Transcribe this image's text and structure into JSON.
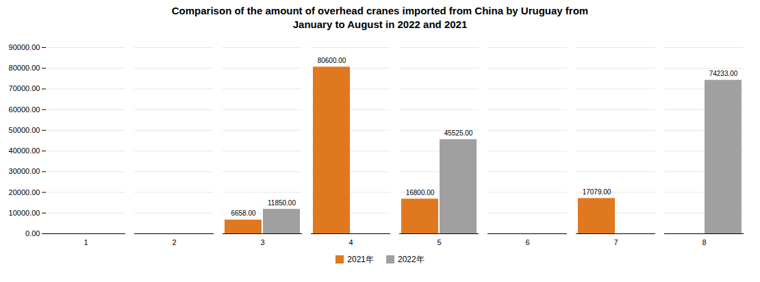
{
  "chart_data": {
    "type": "bar",
    "title": "Comparison of the amount of overhead cranes imported from China by Uruguay from\nJanuary to August in 2022 and 2021",
    "categories": [
      "1",
      "2",
      "3",
      "4",
      "5",
      "6",
      "7",
      "8"
    ],
    "series": [
      {
        "name": "2021年",
        "color": "#E07820",
        "values": [
          0,
          0,
          6658,
          80600,
          16800,
          0,
          17079,
          0
        ],
        "value_labels": [
          null,
          null,
          "6658.00",
          "80600.00",
          "16800.00",
          null,
          "17079.00",
          null
        ]
      },
      {
        "name": "2022年",
        "color": "#A0A0A0",
        "values": [
          0,
          0,
          11850,
          0,
          45525,
          0,
          0,
          74233
        ],
        "value_labels": [
          null,
          null,
          "11850.00",
          null,
          "45525.00",
          null,
          null,
          "74233.00"
        ]
      }
    ],
    "ylim": [
      0,
      90000
    ],
    "yticks": [
      {
        "value": 0,
        "label": "0.00"
      },
      {
        "value": 10000,
        "label": "10000.00"
      },
      {
        "value": 20000,
        "label": "20000.00"
      },
      {
        "value": 30000,
        "label": "30000.00"
      },
      {
        "value": 40000,
        "label": "40000.00"
      },
      {
        "value": 50000,
        "label": "50000.00"
      },
      {
        "value": 60000,
        "label": "60000.00"
      },
      {
        "value": 70000,
        "label": "70000.00"
      },
      {
        "value": 80000,
        "label": "80000.00"
      },
      {
        "value": 90000,
        "label": "90000.00"
      }
    ],
    "grid": true,
    "data_labels": true,
    "legend": "bottom"
  }
}
